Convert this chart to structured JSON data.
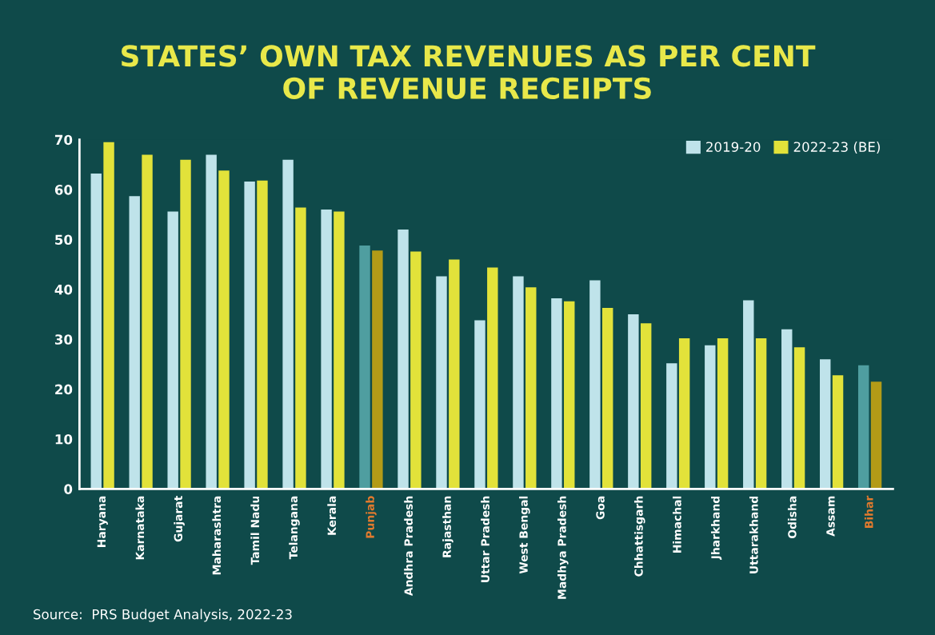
{
  "chart_data": {
    "type": "bar",
    "title": "STATES’ OWN TAX REVENUES AS PER CENT\nOF REVENUE RECEIPTS",
    "categories": [
      "Haryana",
      "Karnataka",
      "Gujarat",
      "Maharashtra",
      "Tamil Nadu",
      "Telangana",
      "Kerala",
      "Punjab",
      "Andhra Pradesh",
      "Rajasthan",
      "Uttar Pradesh",
      "West Bengal",
      "Madhya Pradesh",
      "Goa",
      "Chhattisgarh",
      "Himachal",
      "Jharkhand",
      "Uttarakhand",
      "Odisha",
      "Assam",
      "Bihar"
    ],
    "series": [
      {
        "name": "2019-20",
        "color": "#bfe3ea",
        "colors": [
          "#bfe3ea",
          "#bfe3ea",
          "#bfe3ea",
          "#bfe3ea",
          "#bfe3ea",
          "#bfe3ea",
          "#bfe3ea",
          "#4f9ea0",
          "#bfe3ea",
          "#bfe3ea",
          "#bfe3ea",
          "#bfe3ea",
          "#bfe3ea",
          "#bfe3ea",
          "#bfe3ea",
          "#bfe3ea",
          "#bfe3ea",
          "#bfe3ea",
          "#bfe3ea",
          "#bfe3ea",
          "#4f9ea0"
        ],
        "values": [
          63.2,
          58.7,
          55.6,
          67,
          61.6,
          66,
          56,
          48.8,
          52,
          42.6,
          33.8,
          42.6,
          38.2,
          41.8,
          35,
          25.2,
          28.8,
          37.8,
          32,
          26,
          24.8
        ]
      },
      {
        "name": "2022-23 (BE)",
        "color": "#e2e23a",
        "colors": [
          "#e2e23a",
          "#e2e23a",
          "#e2e23a",
          "#e2e23a",
          "#e2e23a",
          "#e2e23a",
          "#e2e23a",
          "#b39b17",
          "#e2e23a",
          "#e2e23a",
          "#e2e23a",
          "#e2e23a",
          "#e2e23a",
          "#e2e23a",
          "#e2e23a",
          "#e2e23a",
          "#e2e23a",
          "#e2e23a",
          "#e2e23a",
          "#e2e23a",
          "#b39b17"
        ],
        "values": [
          69.5,
          67,
          66,
          63.8,
          61.8,
          56.4,
          55.6,
          47.8,
          47.6,
          46,
          44.4,
          40.4,
          37.6,
          36.3,
          33.2,
          30.2,
          30.2,
          30.2,
          28.4,
          22.8,
          21.5
        ]
      }
    ],
    "ylim": [
      0,
      70
    ],
    "yticks": [
      0,
      10,
      20,
      30,
      40,
      50,
      60,
      70
    ],
    "grid": false,
    "legend": "top right",
    "annotations": [
      "Source:  PRS Budget Analysis, 2022-23"
    ]
  }
}
